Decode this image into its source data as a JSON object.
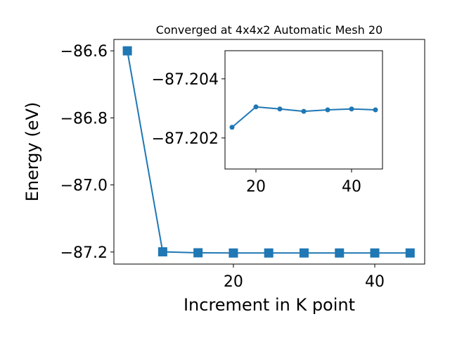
{
  "chart_data": [
    {
      "type": "line",
      "title": "Converged at 4x4x2 Automatic Mesh 20",
      "x_label": "Increment in K point",
      "y_label": "Energy (eV)",
      "x": [
        5,
        10,
        15,
        20,
        25,
        30,
        35,
        40,
        45
      ],
      "series": [
        {
          "color": "#1f77b4",
          "marker": "square",
          "values": [
            -86.6,
            -87.1995,
            -87.20236,
            -87.20305,
            -87.20298,
            -87.2029,
            -87.20295,
            -87.20298,
            -87.20295
          ]
        }
      ],
      "xlim": [
        3.1,
        47.06
      ],
      "ylim": [
        -87.236,
        -86.566
      ],
      "xticks": [
        20,
        40
      ],
      "yticks": [
        {
          "value": -86.6,
          "label": "−86.6"
        },
        {
          "value": -86.8,
          "label": "−86.8"
        },
        {
          "value": -87.0,
          "label": "−87.0"
        },
        {
          "value": -87.2,
          "label": "−87.2"
        }
      ]
    },
    {
      "type": "line",
      "x": [
        15,
        20,
        25,
        30,
        35,
        40,
        45
      ],
      "series": [
        {
          "color": "#1f77b4",
          "marker": "circle",
          "values": [
            -87.20236,
            -87.20305,
            -87.20298,
            -87.2029,
            -87.20295,
            -87.20298,
            -87.20295
          ]
        }
      ],
      "xlim": [
        13.53,
        46.47
      ],
      "ylim": [
        -87.20095,
        -87.20495
      ],
      "xticks": [
        20,
        40
      ],
      "yticks": [
        {
          "value": -87.204,
          "label": "−87.204"
        },
        {
          "value": -87.202,
          "label": "−87.202"
        }
      ]
    }
  ]
}
